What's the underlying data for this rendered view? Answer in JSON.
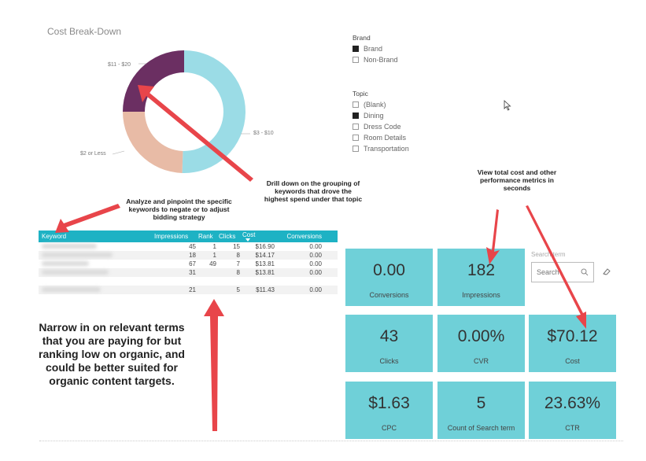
{
  "cost_breakdown": {
    "title": "Cost Break-Down",
    "segments": [
      {
        "label": "$3 - $10",
        "share": 0.505,
        "color": "#9bdce6"
      },
      {
        "label": "$2 or Less",
        "share": 0.245,
        "color": "#e8bba6"
      },
      {
        "label": "$11 - $20",
        "share": 0.25,
        "color": "#6b2f62"
      }
    ]
  },
  "brand_slicer": {
    "title": "Brand",
    "items": [
      {
        "label": "Brand",
        "checked": true
      },
      {
        "label": "Non-Brand",
        "checked": false
      }
    ]
  },
  "topic_slicer": {
    "title": "Topic",
    "items": [
      {
        "label": "(Blank)",
        "checked": false
      },
      {
        "label": "Dining",
        "checked": true
      },
      {
        "label": "Dress Code",
        "checked": false
      },
      {
        "label": "Room Details",
        "checked": false
      },
      {
        "label": "Transportation",
        "checked": false
      }
    ]
  },
  "annotations": {
    "drill_down": "Drill down on the grouping of keywords that drove the highest spend under that topic",
    "analyze": "Analyze and pinpoint the specific keywords to negate or to adjust bidding strategy",
    "view_total": "View total cost and other performance metrics in seconds",
    "narrow_in": "Narrow in on relevant terms that you are paying for but ranking low on organic, and could be better suited for organic content targets."
  },
  "keyword_table": {
    "headers": {
      "keyword": "Keyword",
      "impressions": "Impressions",
      "rank": "Rank",
      "clicks": "Clicks",
      "cost": "Cost",
      "conversions": "Conversions"
    },
    "rows": [
      {
        "impressions": "45",
        "rank": "1",
        "clicks": "15",
        "cost": "$16.90",
        "conversions": "0.00"
      },
      {
        "impressions": "18",
        "rank": "1",
        "clicks": "8",
        "cost": "$14.17",
        "conversions": "0.00"
      },
      {
        "impressions": "67",
        "rank": "49",
        "clicks": "7",
        "cost": "$13.81",
        "conversions": "0.00"
      },
      {
        "impressions": "31",
        "rank": "",
        "clicks": "8",
        "cost": "$13.81",
        "conversions": "0.00"
      },
      {
        "impressions": "",
        "rank": "",
        "clicks": "",
        "cost": "",
        "conversions": ""
      },
      {
        "impressions": "21",
        "rank": "",
        "clicks": "5",
        "cost": "$11.43",
        "conversions": "0.00"
      }
    ]
  },
  "cards": [
    {
      "value": "0.00",
      "label": "Conversions"
    },
    {
      "value": "182",
      "label": "Impressions"
    },
    {
      "value": "43",
      "label": "Clicks"
    },
    {
      "value": "0.00%",
      "label": "CVR"
    },
    {
      "value": "$70.12",
      "label": "Cost"
    },
    {
      "value": "$1.63",
      "label": "CPC"
    },
    {
      "value": "5",
      "label": "Count of Search term"
    },
    {
      "value": "23.63%",
      "label": "CTR"
    }
  ],
  "search": {
    "label": "Search term",
    "placeholder": "Search"
  },
  "colors": {
    "teal_header": "#1eb2c4",
    "card_bg": "#6fd0d8",
    "arrow_red": "#e8454a"
  }
}
